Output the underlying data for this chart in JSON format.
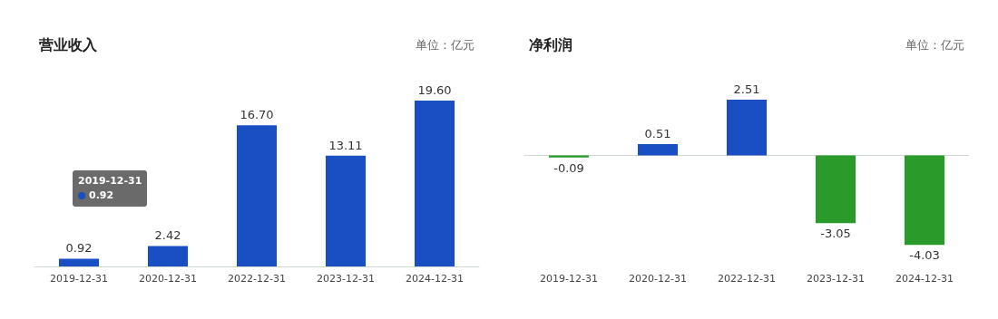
{
  "chart_data": [
    {
      "type": "bar",
      "title": "营业收入",
      "subtitle": "单位：亿元",
      "categories": [
        "2019-12-31",
        "2020-12-31",
        "2022-12-31",
        "2023-12-31",
        "2024-12-31"
      ],
      "values": [
        0.92,
        2.42,
        16.7,
        13.11,
        19.6
      ],
      "colors": [
        "#1a4fc4",
        "#1a4fc4",
        "#1a4fc4",
        "#1a4fc4",
        "#1a4fc4"
      ],
      "value_labels": [
        "0.92",
        "2.42",
        "16.70",
        "13.11",
        "19.60"
      ],
      "annotations": [
        "2019-12-31\n0.92"
      ]
    },
    {
      "type": "bar",
      "title": "净利润",
      "subtitle": "单位：亿元",
      "categories": [
        "2019-12-31",
        "2020-12-31",
        "2022-12-31",
        "2023-12-31",
        "2024-12-31"
      ],
      "values": [
        -0.09,
        0.51,
        2.51,
        -3.05,
        -4.03
      ],
      "colors": [
        "#2a9a2a",
        "#1a4fc4",
        "#1a4fc4",
        "#2a9a2a",
        "#2a9a2a"
      ],
      "value_labels": [
        "-0.09",
        "0.51",
        "2.51",
        "-3.05",
        "-4.03"
      ]
    }
  ]
}
